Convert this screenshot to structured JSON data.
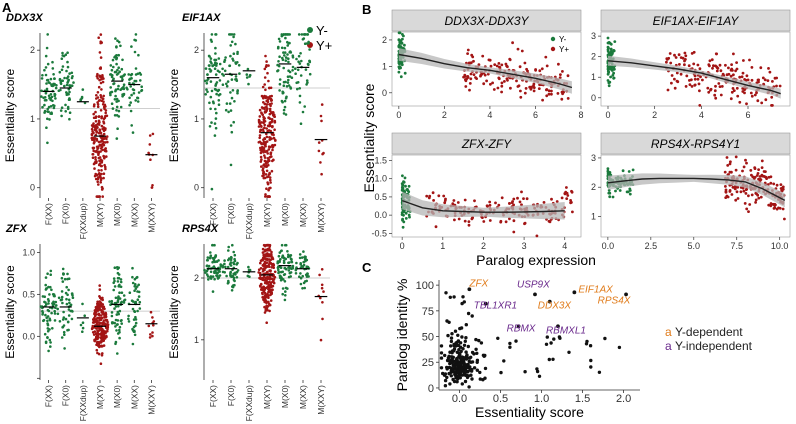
{
  "colors": {
    "green": "#1b7a3c",
    "red": "#a31515",
    "orange": "#e07b1a",
    "purple": "#6a2a8c",
    "black": "#111111",
    "stripBg": "#d9d9d9",
    "refLine": "#bfbfbf",
    "band": "#b5b5b5"
  },
  "panel_labels": {
    "a": "A",
    "b": "B",
    "c": "C"
  },
  "legend_a": {
    "items": [
      "Y-",
      "Y+"
    ]
  },
  "chart_data": [
    {
      "id": "A-DDX3X",
      "type": "beeswarm",
      "title": "DDX3X",
      "ylabel": "Essentiality score",
      "categories": [
        "F(XX)",
        "F(X0)",
        "F(XXdup)",
        "M(XY)",
        "M(X0)",
        "M(XX)",
        "M(XXY)"
      ],
      "group": [
        "Y-",
        "Y-",
        "Y-",
        "Y+",
        "Y-",
        "Y-",
        "Y+"
      ],
      "counts": [
        70,
        55,
        6,
        230,
        75,
        45,
        10
      ],
      "medians": [
        1.4,
        1.45,
        1.25,
        0.75,
        1.55,
        1.5,
        0.48
      ],
      "spreads": [
        0.28,
        0.28,
        0.1,
        0.48,
        0.3,
        0.32,
        0.32
      ],
      "ylim": [
        -0.15,
        2.25
      ],
      "yticks": [
        0,
        1,
        2
      ],
      "refline": 1.15
    },
    {
      "id": "A-EIF1AX",
      "type": "beeswarm",
      "title": "EIF1AX",
      "ylabel": "Essentiality score",
      "categories": [
        "F(XX)",
        "F(X0)",
        "F(XXdup)",
        "M(XY)",
        "M(X0)",
        "M(XX)",
        "M(XXY)"
      ],
      "group": [
        "Y-",
        "Y-",
        "Y-",
        "Y+",
        "Y-",
        "Y-",
        "Y+"
      ],
      "counts": [
        70,
        55,
        6,
        230,
        75,
        45,
        10
      ],
      "medians": [
        1.6,
        1.65,
        1.7,
        0.8,
        1.8,
        1.75,
        0.7
      ],
      "spreads": [
        0.4,
        0.4,
        0.1,
        0.45,
        0.35,
        0.38,
        0.3
      ],
      "ylim": [
        -0.15,
        2.25
      ],
      "yticks": [
        0,
        1,
        2
      ],
      "refline": 1.45
    },
    {
      "id": "A-ZFX",
      "type": "beeswarm",
      "title": "ZFX",
      "ylabel": "Essentiality score",
      "categories": [
        "F(XX)",
        "F(X0)",
        "F(XXdup)",
        "M(XY)",
        "M(X0)",
        "M(XX)",
        "M(XXY)"
      ],
      "group": [
        "Y-",
        "Y-",
        "Y-",
        "Y+",
        "Y-",
        "Y-",
        "Y+"
      ],
      "counts": [
        70,
        55,
        6,
        230,
        75,
        45,
        10
      ],
      "medians": [
        0.35,
        0.35,
        0.22,
        0.12,
        0.38,
        0.38,
        0.15
      ],
      "spreads": [
        0.2,
        0.22,
        0.1,
        0.16,
        0.2,
        0.22,
        0.12
      ],
      "ylim": [
        -0.52,
        1.1
      ],
      "yticks": [
        -0.5,
        0,
        0.5,
        1
      ],
      "ytickLabels": [
        "",
        "0.0",
        "0.5",
        "1.0"
      ],
      "refline": 0.3
    },
    {
      "id": "A-RPS4X",
      "type": "beeswarm",
      "title": "RPS4X",
      "ylabel": "Essentiality score",
      "categories": [
        "F(XX)",
        "F(X0)",
        "F(XXdup)",
        "M(XY)",
        "M(X0)",
        "M(XX)",
        "M(XXY)"
      ],
      "group": [
        "Y-",
        "Y-",
        "Y-",
        "Y+",
        "Y-",
        "Y-",
        "Y+"
      ],
      "counts": [
        70,
        55,
        6,
        230,
        75,
        45,
        10
      ],
      "medians": [
        2.15,
        2.15,
        2.1,
        2.05,
        2.2,
        2.15,
        1.7
      ],
      "spreads": [
        0.15,
        0.15,
        0.05,
        0.28,
        0.18,
        0.15,
        0.3
      ],
      "ylim": [
        0.35,
        2.55
      ],
      "yticks": [
        1,
        2
      ],
      "refline": 2.0
    },
    {
      "id": "B-DDX3X",
      "type": "scatter",
      "title": "DDX3X-DDX3Y",
      "x_range": [
        -0.3,
        8
      ],
      "xticks": [
        0,
        2,
        4,
        6,
        8
      ],
      "ylim": [
        -0.5,
        2.3
      ],
      "yticks": [
        0,
        1,
        2
      ],
      "groups": [
        {
          "name": "Y-",
          "n": 90,
          "x": [
            0,
            0.3
          ],
          "y_mean": 1.45,
          "y_sd": 0.35
        },
        {
          "name": "Y+",
          "n": 190,
          "x": [
            2.8,
            7.5
          ],
          "y_mean": 0.75,
          "y_sd": 0.35
        }
      ],
      "fit": {
        "x": [
          0,
          1,
          2,
          3,
          4,
          5,
          6,
          7,
          7.6
        ],
        "y": [
          1.45,
          1.3,
          1.1,
          0.95,
          0.85,
          0.7,
          0.55,
          0.35,
          0.2
        ]
      },
      "legend": [
        "Y-",
        "Y+"
      ]
    },
    {
      "id": "B-EIF1AX",
      "type": "scatter",
      "title": "EIF1AX-EIF1AY",
      "x_range": [
        -0.3,
        7.8
      ],
      "xticks": [
        0,
        2,
        4,
        6
      ],
      "ylim": [
        -0.4,
        3.2
      ],
      "yticks": [
        0,
        1,
        2,
        3
      ],
      "groups": [
        {
          "name": "Y-",
          "n": 90,
          "x": [
            0,
            0.3
          ],
          "y_mean": 1.7,
          "y_sd": 0.45
        },
        {
          "name": "Y+",
          "n": 190,
          "x": [
            2.5,
            7.4
          ],
          "y_mean": 0.9,
          "y_sd": 0.5
        }
      ],
      "fit": {
        "x": [
          0,
          1,
          2,
          3,
          4,
          5,
          6,
          7,
          7.4
        ],
        "y": [
          1.8,
          1.7,
          1.55,
          1.4,
          1.2,
          0.9,
          0.6,
          0.35,
          0.2
        ]
      }
    },
    {
      "id": "B-ZFX",
      "type": "scatter",
      "title": "ZFX-ZFY",
      "x_range": [
        -0.25,
        4.4
      ],
      "xticks": [
        0,
        1,
        2,
        3,
        4
      ],
      "ylim": [
        -0.6,
        1.65
      ],
      "yticks": [
        -0.5,
        0,
        0.5,
        1,
        1.5
      ],
      "ytickLabels": [
        "-0.5",
        "0.0",
        "0.5",
        "1.0",
        "1.5"
      ],
      "groups": [
        {
          "name": "Y-",
          "n": 90,
          "x": [
            0,
            0.2
          ],
          "y_mean": 0.4,
          "y_sd": 0.3
        },
        {
          "name": "Y+",
          "n": 190,
          "x": [
            0.6,
            4.2
          ],
          "y_mean": 0.1,
          "y_sd": 0.2
        }
      ],
      "fit": {
        "x": [
          0,
          0.5,
          1,
          1.5,
          2,
          2.5,
          3,
          3.5,
          4
        ],
        "y": [
          0.4,
          0.2,
          0.12,
          0.1,
          0.08,
          0.08,
          0.09,
          0.1,
          0.12
        ]
      }
    },
    {
      "id": "B-RPS4X",
      "type": "scatter",
      "title": "RPS4X-RPS4Y1",
      "x_range": [
        -0.4,
        10.6
      ],
      "xticks": [
        0,
        2.5,
        5,
        7.5,
        10
      ],
      "xtickLabels": [
        "0.0",
        "2.5",
        "5.0",
        "7.5",
        "10.0"
      ],
      "ylim": [
        0.3,
        3.1
      ],
      "yticks": [
        1,
        2,
        3
      ],
      "groups": [
        {
          "name": "Y-",
          "n": 90,
          "x": [
            0,
            1.5
          ],
          "y_mean": 2.2,
          "y_sd": 0.2
        },
        {
          "name": "Y+",
          "n": 190,
          "x": [
            6.8,
            10.3
          ],
          "y_mean": 2.05,
          "y_sd": 0.35
        }
      ],
      "fit": {
        "x": [
          0,
          1,
          2,
          3,
          4,
          5,
          6,
          7,
          8,
          9,
          10.3
        ],
        "y": [
          2.15,
          2.22,
          2.28,
          2.3,
          2.3,
          2.3,
          2.28,
          2.25,
          2.18,
          1.95,
          1.55
        ]
      }
    },
    {
      "id": "C",
      "type": "scatter",
      "xlabel": "Essentiality score",
      "ylabel": "Paralog identity %",
      "x_range": [
        -0.25,
        2.2
      ],
      "xticks": [
        0,
        0.5,
        1,
        1.5,
        2
      ],
      "xtickLabels": [
        "0.0",
        "0.5",
        "1.0",
        "1.5",
        "2.0"
      ],
      "ylim": [
        -2,
        105
      ],
      "yticks": [
        0,
        25,
        50,
        75,
        100
      ],
      "background_points": {
        "n": 260
      },
      "labeled": [
        {
          "name": "ZFX",
          "x": 0.12,
          "y": 96,
          "class": "Y-dependent"
        },
        {
          "name": "USP9X",
          "x": 0.92,
          "y": 91,
          "class": "Y-independent"
        },
        {
          "name": "EIF1AX",
          "x": 1.4,
          "y": 93,
          "class": "Y-dependent"
        },
        {
          "name": "TBL1XR1",
          "x": 0.32,
          "y": 82,
          "class": "Y-independent"
        },
        {
          "name": "DDX3X",
          "x": 1.1,
          "y": 84,
          "class": "Y-dependent"
        },
        {
          "name": "RPS4X",
          "x": 2.03,
          "y": 91,
          "class": "Y-dependent"
        },
        {
          "name": "RBMX",
          "x": 0.72,
          "y": 60,
          "class": "Y-independent"
        },
        {
          "name": "RBMXL1",
          "x": 1.2,
          "y": 60,
          "class": "Y-independent"
        }
      ],
      "legend": [
        {
          "name": "Y-dependent",
          "color": "#e07b1a"
        },
        {
          "name": "Y-independent",
          "color": "#6a2a8c"
        }
      ]
    }
  ],
  "axis_titles": {
    "b_y": "Essentiality score",
    "b_x": "Paralog expression"
  }
}
